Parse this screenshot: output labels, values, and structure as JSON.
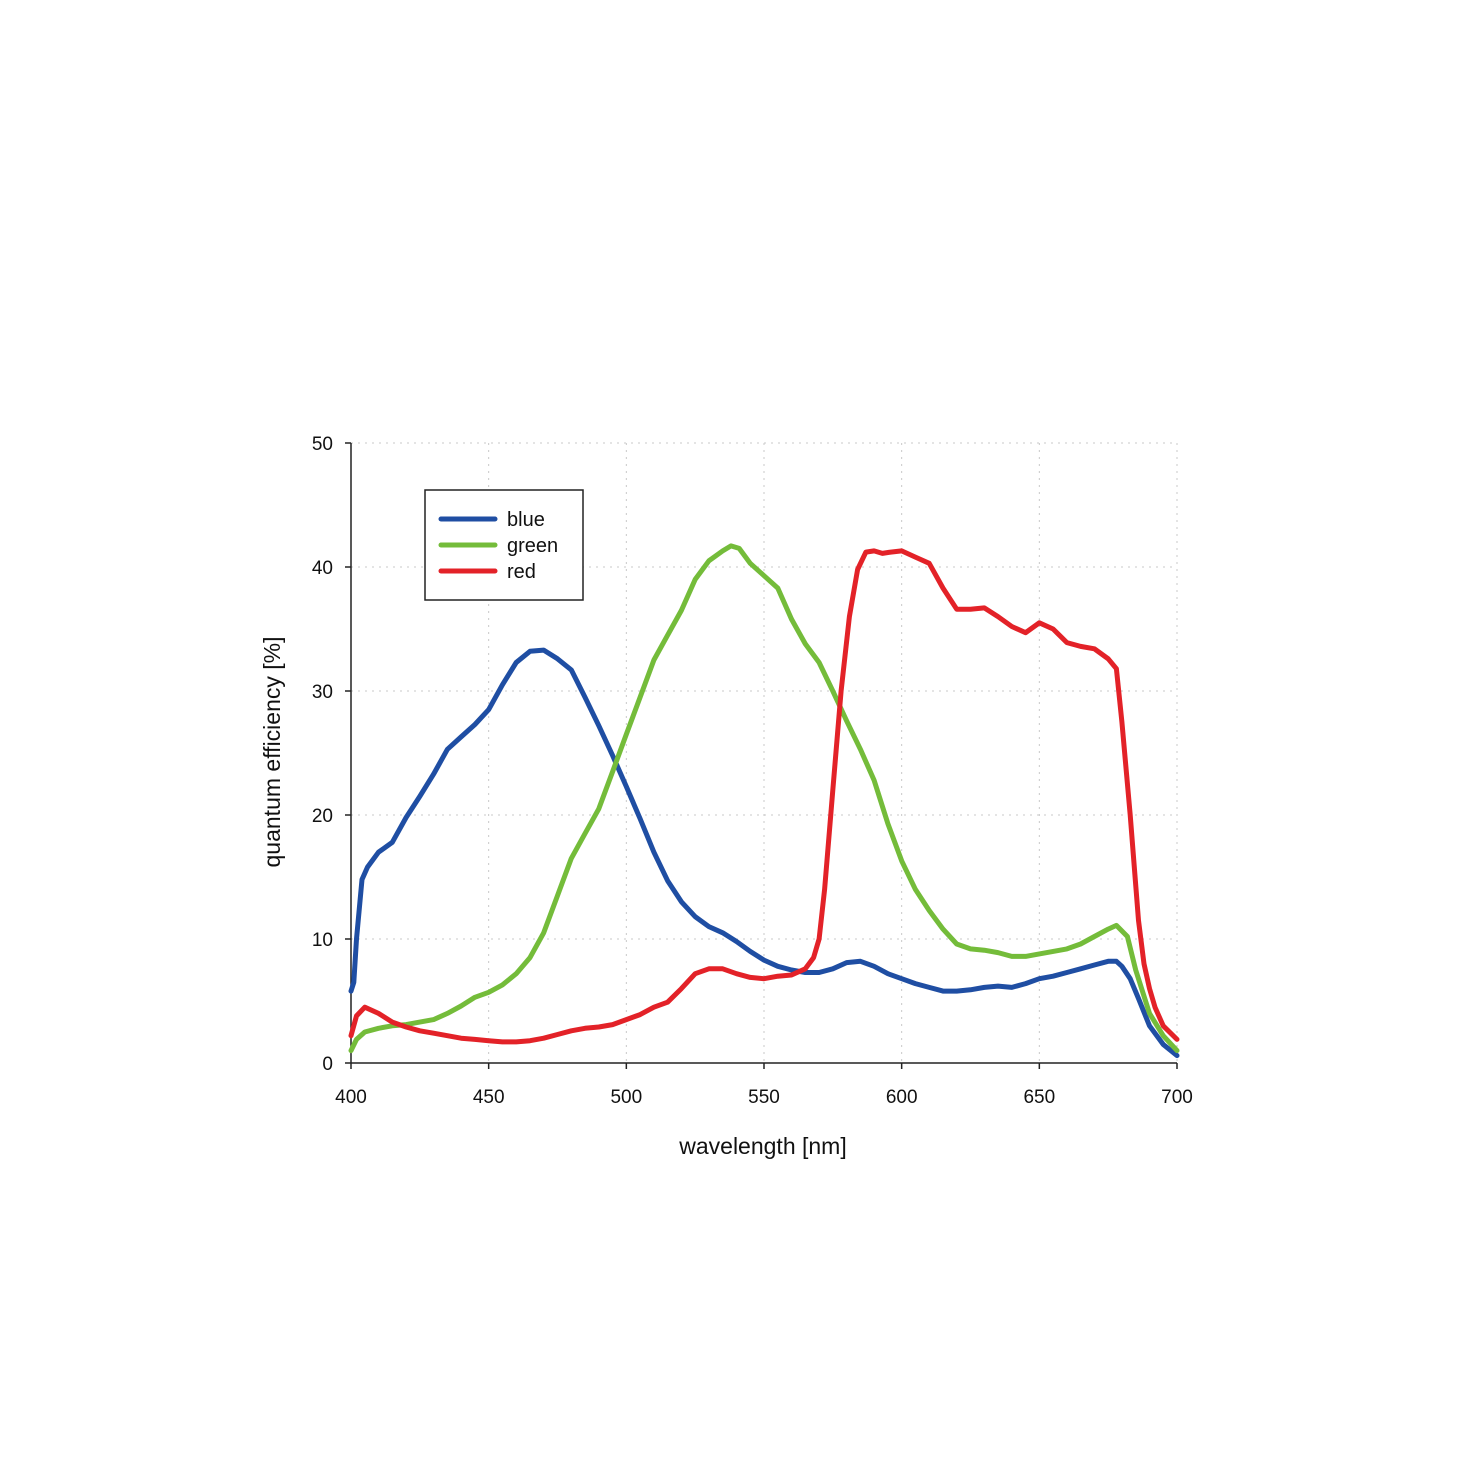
{
  "chart_data": {
    "type": "line",
    "title": "",
    "xlabel": "wavelength [nm]",
    "ylabel": "quantum efficiency [%]",
    "xlim": [
      400,
      700
    ],
    "ylim": [
      0,
      50
    ],
    "xticks": [
      400,
      450,
      500,
      550,
      600,
      650,
      700
    ],
    "yticks": [
      0,
      10,
      20,
      30,
      40,
      50
    ],
    "grid": true,
    "legend_position": "top-left",
    "series": [
      {
        "name": "blue",
        "color": "#1f4ea3",
        "x": [
          400,
          401,
          402,
          404,
          406,
          410,
          415,
          420,
          425,
          430,
          435,
          440,
          445,
          450,
          455,
          460,
          465,
          470,
          475,
          480,
          485,
          490,
          495,
          500,
          505,
          510,
          515,
          520,
          525,
          530,
          535,
          540,
          545,
          550,
          555,
          560,
          565,
          570,
          575,
          580,
          585,
          590,
          595,
          600,
          605,
          610,
          615,
          620,
          625,
          630,
          635,
          640,
          645,
          650,
          655,
          660,
          665,
          670,
          675,
          678,
          680,
          683,
          686,
          690,
          695,
          700
        ],
        "y": [
          5.8,
          6.5,
          10,
          14.8,
          15.8,
          17,
          17.8,
          19.8,
          21.5,
          23.3,
          25.3,
          26.3,
          27.3,
          28.5,
          30.5,
          32.3,
          33.2,
          33.3,
          32.6,
          31.7,
          29.5,
          27.2,
          24.8,
          22.3,
          19.7,
          17,
          14.7,
          13,
          11.8,
          11,
          10.5,
          9.8,
          9,
          8.3,
          7.8,
          7.5,
          7.3,
          7.3,
          7.6,
          8.1,
          8.2,
          7.8,
          7.2,
          6.8,
          6.4,
          6.1,
          5.8,
          5.8,
          5.9,
          6.1,
          6.2,
          6.1,
          6.4,
          6.8,
          7.0,
          7.3,
          7.6,
          7.9,
          8.2,
          8.2,
          7.8,
          6.8,
          5.2,
          3,
          1.5,
          0.6
        ]
      },
      {
        "name": "green",
        "color": "#74bc3a",
        "x": [
          400,
          402,
          405,
          410,
          415,
          420,
          425,
          430,
          435,
          440,
          445,
          450,
          455,
          460,
          465,
          470,
          475,
          480,
          485,
          490,
          495,
          500,
          505,
          510,
          515,
          520,
          525,
          530,
          535,
          538,
          541,
          545,
          550,
          555,
          560,
          565,
          570,
          575,
          580,
          585,
          590,
          595,
          600,
          605,
          610,
          615,
          620,
          625,
          630,
          635,
          640,
          645,
          650,
          655,
          660,
          665,
          670,
          675,
          678,
          682,
          685,
          690,
          695,
          700
        ],
        "y": [
          1.0,
          1.9,
          2.5,
          2.8,
          3.0,
          3.1,
          3.3,
          3.5,
          4.0,
          4.6,
          5.3,
          5.7,
          6.3,
          7.2,
          8.5,
          10.5,
          13.5,
          16.5,
          18.5,
          20.5,
          23.5,
          26.5,
          29.5,
          32.5,
          34.5,
          36.5,
          39,
          40.5,
          41.3,
          41.7,
          41.5,
          40.3,
          39.3,
          38.3,
          35.8,
          33.8,
          32.3,
          30,
          27.6,
          25.3,
          22.8,
          19.3,
          16.3,
          14.0,
          12.3,
          10.8,
          9.6,
          9.2,
          9.1,
          8.9,
          8.6,
          8.6,
          8.8,
          9.0,
          9.2,
          9.6,
          10.2,
          10.8,
          11.1,
          10.2,
          7.5,
          4,
          2.2,
          1.0
        ]
      },
      {
        "name": "red",
        "color": "#e32228",
        "x": [
          400,
          402,
          405,
          410,
          415,
          420,
          425,
          430,
          435,
          440,
          445,
          450,
          455,
          460,
          465,
          470,
          475,
          480,
          485,
          490,
          495,
          500,
          505,
          510,
          515,
          520,
          525,
          530,
          535,
          540,
          545,
          550,
          555,
          560,
          565,
          568,
          570,
          572,
          575,
          578,
          581,
          584,
          587,
          590,
          593,
          596,
          600,
          605,
          610,
          615,
          620,
          625,
          630,
          635,
          640,
          645,
          650,
          655,
          660,
          665,
          670,
          675,
          678,
          680,
          683,
          686,
          688,
          690,
          692,
          695,
          700
        ],
        "y": [
          2.2,
          3.8,
          4.5,
          4.0,
          3.3,
          2.9,
          2.6,
          2.4,
          2.2,
          2.0,
          1.9,
          1.8,
          1.7,
          1.7,
          1.8,
          2.0,
          2.3,
          2.6,
          2.8,
          2.9,
          3.1,
          3.5,
          3.9,
          4.5,
          4.9,
          6,
          7.2,
          7.6,
          7.6,
          7.2,
          6.9,
          6.8,
          7.0,
          7.1,
          7.6,
          8.5,
          10,
          14,
          22,
          30,
          36,
          39.8,
          41.2,
          41.3,
          41.1,
          41.2,
          41.3,
          40.8,
          40.3,
          38.3,
          36.6,
          36.6,
          36.7,
          36.0,
          35.2,
          34.7,
          35.5,
          35.0,
          33.9,
          33.6,
          33.4,
          32.6,
          31.8,
          27.5,
          20,
          11.5,
          8,
          6,
          4.5,
          3.0,
          1.9
        ]
      }
    ]
  }
}
